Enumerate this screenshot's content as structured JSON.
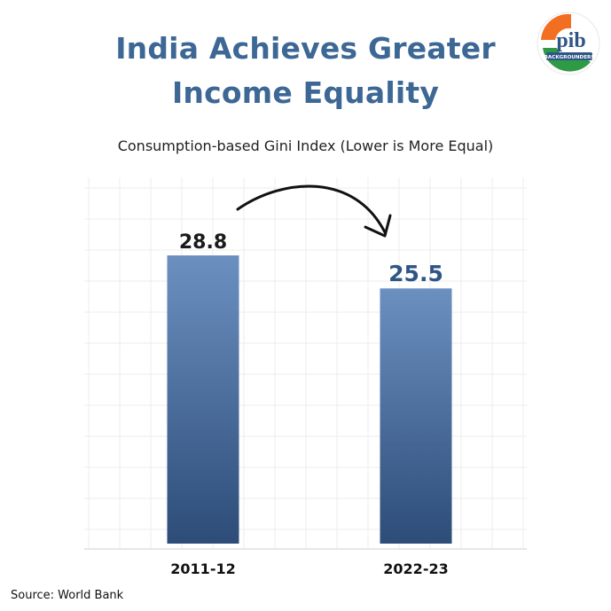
{
  "logo": {
    "text": "pib",
    "subtext": "BACKGROUNDERS"
  },
  "source": "Source: World Bank",
  "colors": {
    "title": "#3d6794",
    "bar_top": "#6b90c0",
    "bar_bottom": "#2d4c78",
    "value_highlight": "#2f5586",
    "arrow": "#111111",
    "grid": "#ececec"
  },
  "chart_data": {
    "type": "bar",
    "title": "India Achieves Greater Income Equality",
    "subtitle": "Consumption-based Gini Index (Lower is More Equal)",
    "categories": [
      "2011-12",
      "2022-23"
    ],
    "values": [
      28.8,
      25.5
    ],
    "data_labels": [
      "28.8",
      "25.5"
    ],
    "xlabel": "",
    "ylabel": "",
    "ylim": [
      0,
      29.5
    ],
    "grid": true,
    "legend": "none",
    "annotation": "curved arrow from 2011-12 to 2022-23"
  }
}
